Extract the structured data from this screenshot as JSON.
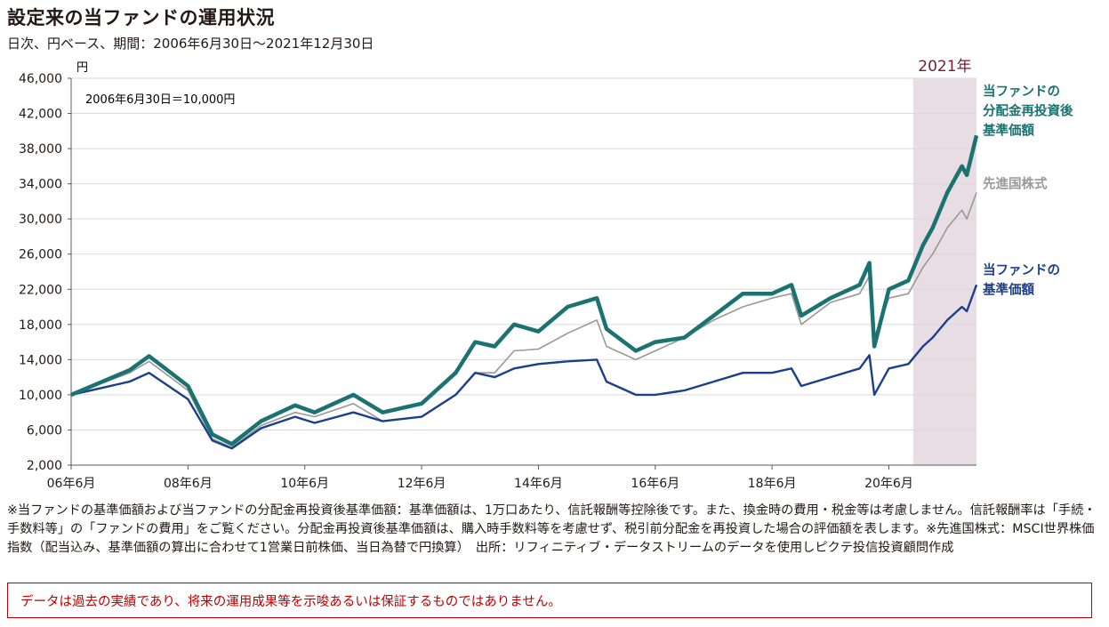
{
  "title": "設定来の当ファンドの運用状況",
  "subtitle": "日次、円ベース、期間：2006年6月30日～2021年12月30日",
  "notes": "※当ファンドの基準価額および当ファンドの分配金再投資後基準価額：基準価額は、1万口あたり、信託報酬等控除後です。また、換金時の費用・税金等は考慮しません。信託報酬率は「手続・手数料等」の「ファンドの費用」をご覧ください。分配金再投資後基準価額は、購入時手数料等を考慮せず、税引前分配金を再投資した場合の評価額を表します。※先進国株式：MSCI世界株価指数（配当込み、基準価額の算出に合わせて1営業日前株価、当日為替で円換算）　出所：リフィニティブ・データストリームのデータを使用しピクテ投信投資顧問作成",
  "disclaimer": "データは過去の実績であり、将来の運用成果等を示唆あるいは保証するものではありません。",
  "chart_data": {
    "type": "line",
    "unit": "円",
    "annotation": "2006年6月30日＝10,000円",
    "highlight": {
      "label": "2021年",
      "from": "2021-01",
      "to": "2021-12",
      "color": "#e8dde3"
    },
    "ylim": [
      2000,
      46000
    ],
    "y_ticks": [
      2000,
      6000,
      10000,
      14000,
      18000,
      22000,
      26000,
      30000,
      34000,
      38000,
      42000,
      46000
    ],
    "y_tick_labels": [
      "2,000",
      "6,000",
      "10,000",
      "14,000",
      "18,000",
      "22,000",
      "26,000",
      "30,000",
      "34,000",
      "38,000",
      "42,000",
      "46,000"
    ],
    "x_range": [
      "2006-06",
      "2021-12"
    ],
    "x_ticks": [
      "2006-06",
      "2008-06",
      "2010-06",
      "2012-06",
      "2014-06",
      "2016-06",
      "2018-06",
      "2020-06"
    ],
    "x_tick_labels": [
      "06年6月",
      "08年6月",
      "10年6月",
      "12年6月",
      "14年6月",
      "16年6月",
      "18年6月",
      "20年6月"
    ],
    "x": [
      "2006-06",
      "2007-06",
      "2007-10",
      "2008-06",
      "2008-11",
      "2009-03",
      "2009-09",
      "2010-04",
      "2010-08",
      "2011-04",
      "2011-10",
      "2012-06",
      "2013-01",
      "2013-05",
      "2013-09",
      "2014-01",
      "2014-06",
      "2014-12",
      "2015-06",
      "2015-08",
      "2016-02",
      "2016-06",
      "2016-12",
      "2017-06",
      "2017-12",
      "2018-06",
      "2018-10",
      "2018-12",
      "2019-06",
      "2019-12",
      "2020-02",
      "2020-03",
      "2020-06",
      "2020-10",
      "2021-01",
      "2021-03",
      "2021-06",
      "2021-09",
      "2021-10",
      "2021-12"
    ],
    "series": [
      {
        "name": "当ファンドの分配金再投資後基準価額",
        "color": "#1a7370",
        "values": [
          10000,
          12800,
          14400,
          11000,
          5500,
          4400,
          7000,
          8800,
          8000,
          10000,
          8000,
          9000,
          12500,
          16000,
          15500,
          18000,
          17200,
          20000,
          21000,
          17500,
          15000,
          16000,
          16500,
          19000,
          21500,
          21500,
          22500,
          19000,
          21000,
          22500,
          25000,
          15500,
          22000,
          23000,
          27000,
          29000,
          33000,
          36000,
          35000,
          39500
        ]
      },
      {
        "name": "先進国株式",
        "color": "#999999",
        "values": [
          10000,
          12500,
          13800,
          10500,
          5000,
          4000,
          6500,
          8000,
          7500,
          9000,
          7000,
          7500,
          10000,
          12500,
          12500,
          15000,
          15200,
          17000,
          18500,
          15500,
          14000,
          15000,
          16500,
          18500,
          20000,
          21000,
          21500,
          18000,
          20500,
          21500,
          23500,
          16500,
          21000,
          21500,
          24500,
          26000,
          29000,
          31000,
          30000,
          33000
        ]
      },
      {
        "name": "当ファンドの基準価額",
        "color": "#1b3f8b",
        "values": [
          10000,
          11500,
          12500,
          9500,
          4800,
          3900,
          6200,
          7500,
          6800,
          8000,
          7000,
          7500,
          10000,
          12500,
          12000,
          13000,
          13500,
          13800,
          14000,
          11500,
          10000,
          10000,
          10500,
          11500,
          12500,
          12500,
          13000,
          11000,
          12000,
          13000,
          14500,
          10000,
          13000,
          13500,
          15500,
          16500,
          18500,
          20000,
          19500,
          22500
        ]
      }
    ],
    "series_labels": [
      {
        "series": 0,
        "lines": [
          "当ファンドの",
          "分配金再投資後",
          "基準価額"
        ]
      },
      {
        "series": 1,
        "lines": [
          "先進国株式"
        ]
      },
      {
        "series": 2,
        "lines": [
          "当ファンドの",
          "基準価額"
        ]
      }
    ]
  }
}
